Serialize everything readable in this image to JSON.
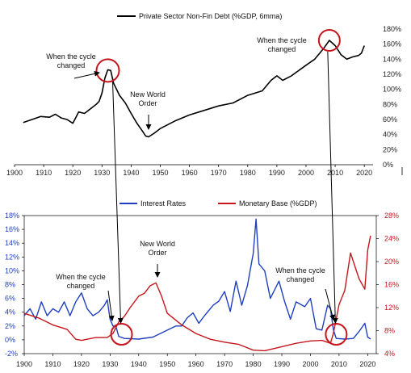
{
  "chart_data": [
    {
      "type": "line",
      "legend": [
        "Private Sector Non-Fin Debt (%GDP, 6mma)"
      ],
      "x_ticks": [
        "1900",
        "1910",
        "1920",
        "1930",
        "1940",
        "1950",
        "1960",
        "1970",
        "1980",
        "1990",
        "2000",
        "2010",
        "2020"
      ],
      "y_ticks": [
        "0%",
        "20%",
        "40%",
        "60%",
        "80%",
        "100%",
        "120%",
        "140%",
        "160%",
        "180%"
      ],
      "xlim": [
        1900,
        2023
      ],
      "ylim": [
        0,
        180
      ],
      "series": [
        {
          "color": "#000000",
          "points": [
            [
              1903,
              56
            ],
            [
              1906,
              60
            ],
            [
              1909,
              64
            ],
            [
              1912,
              63
            ],
            [
              1914,
              67
            ],
            [
              1916,
              62
            ],
            [
              1918,
              60
            ],
            [
              1920,
              55
            ],
            [
              1922,
              70
            ],
            [
              1924,
              68
            ],
            [
              1926,
              74
            ],
            [
              1928,
              80
            ],
            [
              1929,
              84
            ],
            [
              1930,
              95
            ],
            [
              1931,
              115
            ],
            [
              1932,
              126
            ],
            [
              1933,
              125
            ],
            [
              1934,
              108
            ],
            [
              1936,
              92
            ],
            [
              1938,
              82
            ],
            [
              1940,
              68
            ],
            [
              1942,
              55
            ],
            [
              1944,
              44
            ],
            [
              1945,
              38
            ],
            [
              1946,
              37
            ],
            [
              1948,
              42
            ],
            [
              1950,
              48
            ],
            [
              1955,
              58
            ],
            [
              1960,
              66
            ],
            [
              1965,
              72
            ],
            [
              1970,
              78
            ],
            [
              1975,
              82
            ],
            [
              1980,
              92
            ],
            [
              1985,
              98
            ],
            [
              1988,
              112
            ],
            [
              1990,
              118
            ],
            [
              1992,
              112
            ],
            [
              1995,
              118
            ],
            [
              2000,
              132
            ],
            [
              2003,
              140
            ],
            [
              2006,
              154
            ],
            [
              2008,
              165
            ],
            [
              2010,
              158
            ],
            [
              2012,
              146
            ],
            [
              2014,
              140
            ],
            [
              2016,
              143
            ],
            [
              2018,
              145
            ],
            [
              2019,
              148
            ],
            [
              2020,
              158
            ]
          ]
        }
      ],
      "annotations": [
        {
          "lines": [
            "When the cycle",
            "changed"
          ],
          "x": 1932,
          "y": 125
        },
        {
          "lines": [
            "New World",
            "Order"
          ],
          "x": 1946,
          "y": 37
        },
        {
          "lines": [
            "When the cycle",
            "changed"
          ],
          "x": 2008,
          "y": 165
        }
      ]
    },
    {
      "type": "line",
      "legend": [
        "Interest Rates",
        "Monetary Base (%GDP)"
      ],
      "x_ticks": [
        "1900",
        "1910",
        "1920",
        "1930",
        "1940",
        "1950",
        "1960",
        "1970",
        "1980",
        "1990",
        "2000",
        "2010",
        "2020"
      ],
      "y_left_ticks": [
        "-2%",
        "0%",
        "2%",
        "4%",
        "6%",
        "8%",
        "10%",
        "12%",
        "14%",
        "16%",
        "18%"
      ],
      "y_right_ticks": [
        "4%",
        "8%",
        "12%",
        "16%",
        "20%",
        "24%",
        "28%"
      ],
      "xlim": [
        1900,
        2023
      ],
      "ylim_left": [
        -2,
        18
      ],
      "ylim_right": [
        4,
        28
      ],
      "series": [
        {
          "name": "Interest Rates",
          "color": "#1f3fbf",
          "axis": "left",
          "points": [
            [
              1900,
              3.5
            ],
            [
              1902,
              4.5
            ],
            [
              1904,
              3.0
            ],
            [
              1906,
              5.5
            ],
            [
              1908,
              3.5
            ],
            [
              1910,
              4.5
            ],
            [
              1912,
              4.0
            ],
            [
              1914,
              5.5
            ],
            [
              1916,
              3.5
            ],
            [
              1918,
              5.5
            ],
            [
              1920,
              6.8
            ],
            [
              1922,
              4.5
            ],
            [
              1924,
              3.5
            ],
            [
              1926,
              4.0
            ],
            [
              1928,
              5.0
            ],
            [
              1929,
              5.8
            ],
            [
              1930,
              3.0
            ],
            [
              1931,
              2.0
            ],
            [
              1932,
              2.0
            ],
            [
              1933,
              0.5
            ],
            [
              1935,
              0.2
            ],
            [
              1940,
              0.1
            ],
            [
              1945,
              0.4
            ],
            [
              1948,
              1.0
            ],
            [
              1950,
              1.4
            ],
            [
              1953,
              2.0
            ],
            [
              1955,
              2.0
            ],
            [
              1957,
              3.2
            ],
            [
              1959,
              3.9
            ],
            [
              1961,
              2.4
            ],
            [
              1963,
              3.5
            ],
            [
              1966,
              5.0
            ],
            [
              1968,
              5.6
            ],
            [
              1970,
              7.0
            ],
            [
              1972,
              4.1
            ],
            [
              1974,
              8.5
            ],
            [
              1976,
              5.0
            ],
            [
              1978,
              7.9
            ],
            [
              1980,
              12.5
            ],
            [
              1981,
              17.5
            ],
            [
              1982,
              11.0
            ],
            [
              1984,
              10.0
            ],
            [
              1986,
              6.0
            ],
            [
              1989,
              8.5
            ],
            [
              1991,
              5.5
            ],
            [
              1993,
              3.0
            ],
            [
              1995,
              5.5
            ],
            [
              1998,
              4.8
            ],
            [
              2000,
              6.0
            ],
            [
              2002,
              1.6
            ],
            [
              2004,
              1.4
            ],
            [
              2006,
              5.0
            ],
            [
              2007,
              4.5
            ],
            [
              2008,
              1.5
            ],
            [
              2009,
              0.2
            ],
            [
              2012,
              0.1
            ],
            [
              2015,
              0.2
            ],
            [
              2017,
              1.2
            ],
            [
              2019,
              2.4
            ],
            [
              2020,
              0.4
            ],
            [
              2021,
              0.1
            ]
          ]
        },
        {
          "name": "Monetary Base (%GDP)",
          "color": "#c4161c",
          "axis": "right",
          "points": [
            [
              1900,
              11.0
            ],
            [
              1905,
              10.2
            ],
            [
              1910,
              9.0
            ],
            [
              1915,
              8.2
            ],
            [
              1918,
              6.5
            ],
            [
              1920,
              6.3
            ],
            [
              1925,
              6.8
            ],
            [
              1929,
              6.8
            ],
            [
              1931,
              7.5
            ],
            [
              1933,
              9.5
            ],
            [
              1935,
              10.5
            ],
            [
              1937,
              12.0
            ],
            [
              1940,
              14.0
            ],
            [
              1942,
              14.5
            ],
            [
              1944,
              15.8
            ],
            [
              1946,
              16.3
            ],
            [
              1948,
              14.0
            ],
            [
              1950,
              11.0
            ],
            [
              1955,
              9.0
            ],
            [
              1960,
              7.5
            ],
            [
              1965,
              6.5
            ],
            [
              1970,
              6.0
            ],
            [
              1975,
              5.6
            ],
            [
              1980,
              4.6
            ],
            [
              1984,
              4.5
            ],
            [
              1990,
              5.2
            ],
            [
              1995,
              5.8
            ],
            [
              2000,
              6.2
            ],
            [
              2004,
              6.3
            ],
            [
              2007,
              5.8
            ],
            [
              2008,
              7.5
            ],
            [
              2010,
              12.5
            ],
            [
              2012,
              15.0
            ],
            [
              2014,
              21.5
            ],
            [
              2015,
              20.0
            ],
            [
              2017,
              17.0
            ],
            [
              2019,
              15.2
            ],
            [
              2020,
              22.0
            ],
            [
              2021,
              24.5
            ]
          ]
        }
      ],
      "annotations": [
        {
          "lines": [
            "When the cycle",
            "changed"
          ],
          "x": 1932,
          "y": 0.5
        },
        {
          "lines": [
            "New World",
            "Order"
          ],
          "x": 1946,
          "y": 8
        },
        {
          "lines": [
            "When the cycle",
            "changed"
          ],
          "x": 2008,
          "y": 0.3
        }
      ]
    }
  ]
}
